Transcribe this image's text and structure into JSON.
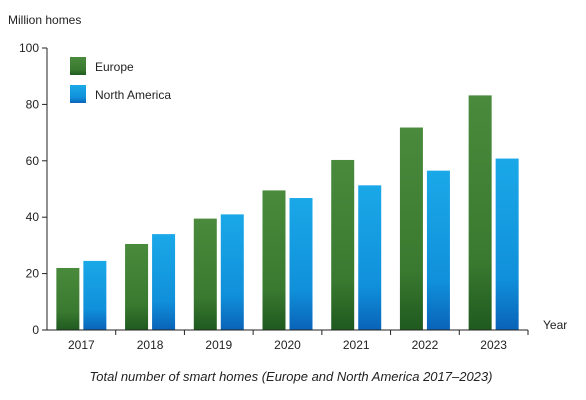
{
  "chart_data": {
    "type": "bar",
    "title": "Total number of smart homes (Europe and North America 2017–2023)",
    "ylabel": "Million homes",
    "xlabel": "Year",
    "categories": [
      "2017",
      "2018",
      "2019",
      "2020",
      "2021",
      "2022",
      "2023"
    ],
    "series": [
      {
        "name": "Europe",
        "values": [
          22,
          30.5,
          39.5,
          49.5,
          60.3,
          71.8,
          83.2
        ]
      },
      {
        "name": "North America",
        "values": [
          24.5,
          34,
          41,
          46.8,
          51.3,
          56.5,
          60.8
        ]
      }
    ],
    "ylim": [
      0,
      100
    ],
    "yticks": [
      0,
      20,
      40,
      60,
      80,
      100
    ],
    "grid": false,
    "legend_position": "top-left",
    "colors": {
      "europe_top": "#4a8a3c",
      "europe_bottom": "#1f5a1f",
      "na_top": "#1aa8e8",
      "na_bottom": "#0a63b8",
      "axis": "#222222"
    }
  }
}
